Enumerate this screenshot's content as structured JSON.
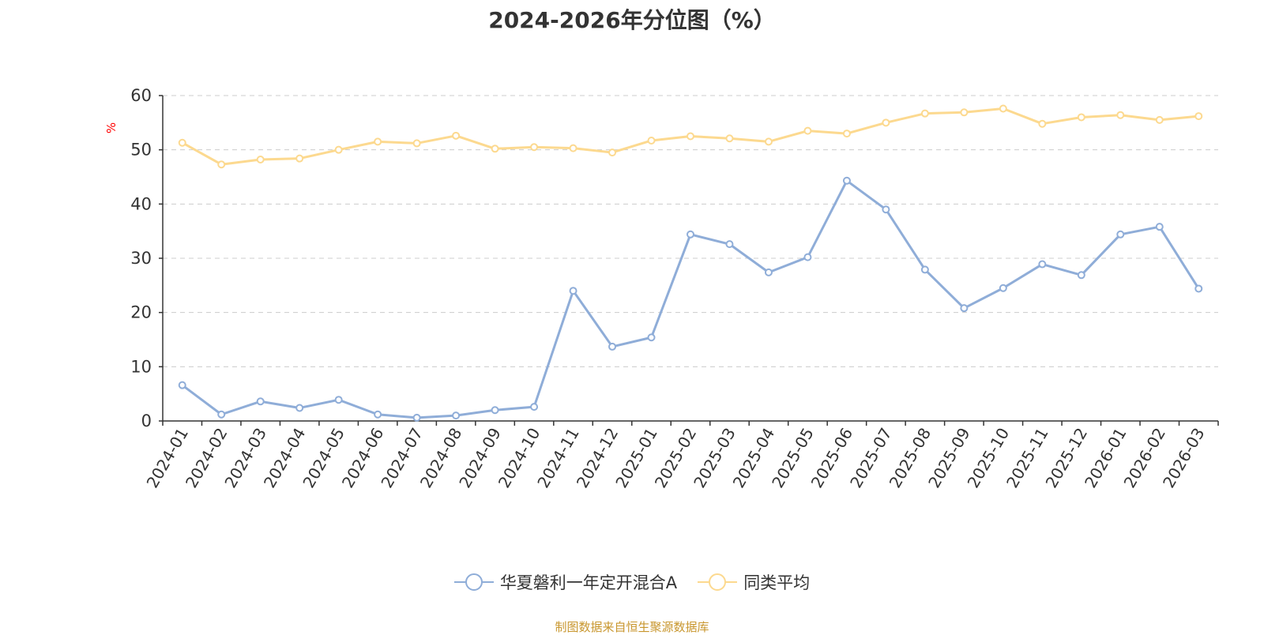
{
  "chart_data": {
    "type": "line",
    "title": "2024-2026年分位图（%）",
    "ylabel": "%",
    "ylim": [
      0,
      60
    ],
    "yticks": [
      0,
      10,
      20,
      30,
      40,
      50,
      60
    ],
    "grid": true,
    "legend_position": "bottom",
    "categories": [
      "2024-01",
      "2024-02",
      "2024-03",
      "2024-04",
      "2024-05",
      "2024-06",
      "2024-07",
      "2024-08",
      "2024-09",
      "2024-10",
      "2024-11",
      "2024-12",
      "2025-01",
      "2025-02",
      "2025-03",
      "2025-04",
      "2025-05",
      "2025-06",
      "2025-07",
      "2025-08",
      "2025-09",
      "2025-10",
      "2025-11",
      "2025-12",
      "2026-01",
      "2026-02",
      "2026-03"
    ],
    "series": [
      {
        "name": "华夏磐利一年定开混合A",
        "color": "#8fadd8",
        "values": [
          6.6,
          1.2,
          3.6,
          2.4,
          3.9,
          1.2,
          0.6,
          1.0,
          2.0,
          2.6,
          24.0,
          13.7,
          15.4,
          34.4,
          32.6,
          27.4,
          30.2,
          44.3,
          39.0,
          27.9,
          20.8,
          24.5,
          28.9,
          26.9,
          34.4,
          35.8,
          24.4
        ]
      },
      {
        "name": "同类平均",
        "color": "#fcd98f",
        "values": [
          51.3,
          47.3,
          48.2,
          48.4,
          50.0,
          51.5,
          51.2,
          52.6,
          50.2,
          50.5,
          50.3,
          49.5,
          51.7,
          52.5,
          52.1,
          51.5,
          53.5,
          53.0,
          55.0,
          56.7,
          56.9,
          57.6,
          54.8,
          56.0,
          56.4,
          55.5,
          56.2
        ]
      }
    ]
  },
  "colors": {
    "title": "#333333",
    "axis": "#333333",
    "grid": "#cccccc",
    "ylabel": "#ff0000",
    "source": "#c8962d"
  },
  "source_text": "制图数据来自恒生聚源数据库"
}
